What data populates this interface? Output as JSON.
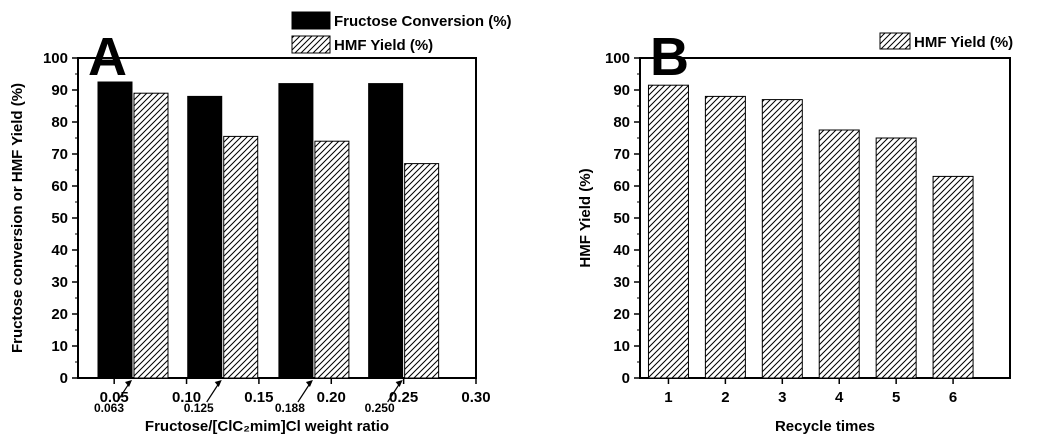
{
  "chart_data": [
    {
      "type": "bar",
      "panel_letter": "A",
      "xlabel": "Fructose/[ClC₂mim]Cl weight ratio",
      "ylabel": "Fructose conversion or HMF Yield (%)",
      "xlim": [
        0.025,
        0.3
      ],
      "ylim": [
        0,
        100
      ],
      "xticks": [
        "0.05",
        "0.10",
        "0.15",
        "0.20",
        "0.25",
        "0.30"
      ],
      "xtick_values": [
        0.05,
        0.1,
        0.15,
        0.2,
        0.25,
        0.3
      ],
      "yticks": [
        "0",
        "10",
        "20",
        "30",
        "40",
        "50",
        "60",
        "70",
        "80",
        "90",
        "100"
      ],
      "categories": [
        "0.063",
        "0.125",
        "0.188",
        "0.250"
      ],
      "category_positions": [
        0.063,
        0.125,
        0.188,
        0.25
      ],
      "series": [
        {
          "name": "Fructose Conversion (%)",
          "fill": "solid",
          "color": "#000000",
          "values": [
            92.5,
            88.0,
            92.0,
            92.0
          ]
        },
        {
          "name": "HMF Yield (%)",
          "fill": "hatched",
          "color": "#000000",
          "values": [
            89.0,
            75.5,
            74.0,
            67.0
          ]
        }
      ],
      "legend_position": "top-right"
    },
    {
      "type": "bar",
      "panel_letter": "B",
      "xlabel": "Recycle times",
      "ylabel": "HMF Yield (%)",
      "ylim": [
        0,
        100
      ],
      "yticks": [
        "0",
        "10",
        "20",
        "30",
        "40",
        "50",
        "60",
        "70",
        "80",
        "90",
        "100"
      ],
      "categories": [
        "1",
        "2",
        "3",
        "4",
        "5",
        "6"
      ],
      "series": [
        {
          "name": "HMF Yield (%)",
          "fill": "hatched",
          "color": "#000000",
          "values": [
            91.5,
            88.0,
            87.0,
            77.5,
            75.0,
            63.0
          ]
        }
      ],
      "legend_position": "top-right"
    }
  ]
}
